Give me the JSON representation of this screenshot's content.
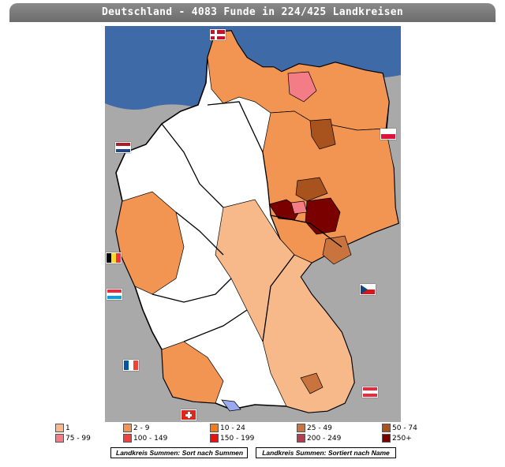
{
  "title": "Deutschland - 4083 Funde in 224/425 Landkreisen",
  "colors": {
    "sea": "#3f6aa8",
    "outside": "#a9a9a9",
    "empty": "#ffffff",
    "border": "#000000"
  },
  "legend": [
    {
      "label": "1",
      "color": "#f7b98a"
    },
    {
      "label": "2 - 9",
      "color": "#f29552"
    },
    {
      "label": "10 - 24",
      "color": "#f07c1e"
    },
    {
      "label": "25 - 49",
      "color": "#c9733e"
    },
    {
      "label": "50 - 74",
      "color": "#a8521e"
    },
    {
      "label": "75 - 99",
      "color": "#f47c86"
    },
    {
      "label": "100 - 149",
      "color": "#f24040"
    },
    {
      "label": "150 - 199",
      "color": "#ee1010"
    },
    {
      "label": "200 - 249",
      "color": "#b33e52"
    },
    {
      "label": "250+",
      "color": "#7a0000"
    }
  ],
  "buttons": {
    "sort_sum": "Landkreis Summen: Sort nach Summen",
    "sort_name": "Landkreis Summen: Sortiert nach Name"
  },
  "flags": [
    {
      "name": "denmark-flag",
      "colors": [
        "#c8102e",
        "#ffffff"
      ]
    },
    {
      "name": "poland-flag",
      "colors": [
        "#ffffff",
        "#dc143c"
      ]
    },
    {
      "name": "netherlands-flag",
      "colors": [
        "#ae1c28",
        "#ffffff",
        "#21468b"
      ]
    },
    {
      "name": "belgium-flag",
      "colors": [
        "#000000",
        "#fdda24",
        "#ef3340"
      ]
    },
    {
      "name": "luxembourg-flag",
      "colors": [
        "#ed2939",
        "#ffffff",
        "#00a1de"
      ]
    },
    {
      "name": "czech-flag",
      "colors": [
        "#ffffff",
        "#d7141a",
        "#11457e"
      ]
    },
    {
      "name": "france-flag",
      "colors": [
        "#0055a4",
        "#ffffff",
        "#ef4135"
      ]
    },
    {
      "name": "austria-flag",
      "colors": [
        "#ed2939",
        "#ffffff",
        "#ed2939"
      ]
    },
    {
      "name": "switzerland-flag",
      "colors": [
        "#da291c",
        "#ffffff"
      ]
    }
  ]
}
